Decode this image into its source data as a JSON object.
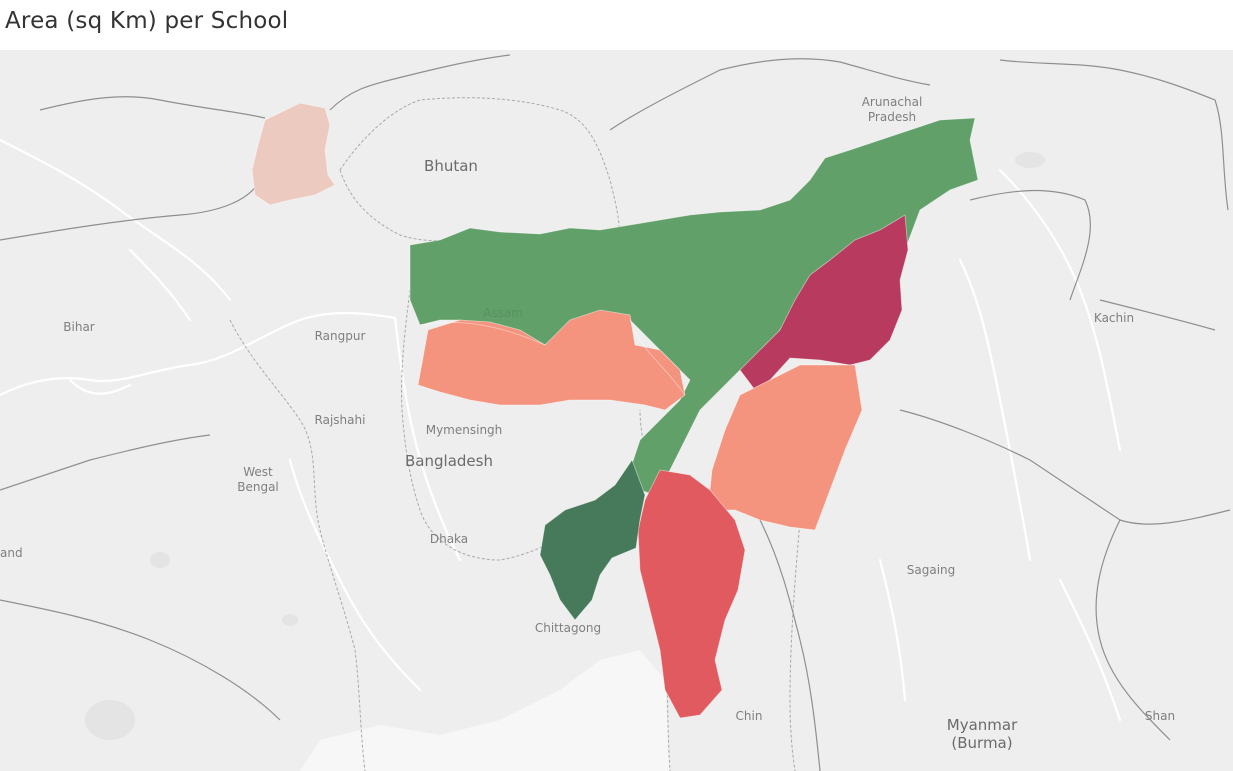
{
  "title": "Area (sq Km) per School",
  "colors": {
    "map_background": "#eeeeee",
    "border_line": "#b9b9b9",
    "dark_green": "#467a5a",
    "green": "#62a06a",
    "light_salmon": "#eccabf",
    "salmon": "#f4937e",
    "coral_red": "#e05a60",
    "crimson": "#b83a5e"
  },
  "map": {
    "place_labels": [
      {
        "text": "Arunachal",
        "name": "label-arunachal-1",
        "size": "sm"
      },
      {
        "text": "Pradesh",
        "name": "label-arunachal-2",
        "size": "sm"
      },
      {
        "text": "Bhutan",
        "name": "label-bhutan",
        "size": "lg"
      },
      {
        "text": "Assam",
        "name": "label-assam",
        "size": "sm"
      },
      {
        "text": "Bihar",
        "name": "label-bihar",
        "size": "sm"
      },
      {
        "text": "Rangpur",
        "name": "label-rangpur",
        "size": "sm"
      },
      {
        "text": "Rajshahi",
        "name": "label-rajshahi",
        "size": "sm"
      },
      {
        "text": "Mymensingh",
        "name": "label-mymensingh",
        "size": "sm"
      },
      {
        "text": "Bangladesh",
        "name": "label-bangladesh",
        "size": "lg"
      },
      {
        "text": "West",
        "name": "label-west-bengal-1",
        "size": "sm"
      },
      {
        "text": "Bengal",
        "name": "label-west-bengal-2",
        "size": "sm"
      },
      {
        "text": "Dhaka",
        "name": "label-dhaka",
        "size": "sm"
      },
      {
        "text": "and",
        "name": "label-and",
        "size": "sm"
      },
      {
        "text": "Chittagong",
        "name": "label-chittagong",
        "size": "sm"
      },
      {
        "text": "Kachin",
        "name": "label-kachin",
        "size": "sm"
      },
      {
        "text": "Sagaing",
        "name": "label-sagaing",
        "size": "sm"
      },
      {
        "text": "Chin",
        "name": "label-chin",
        "size": "sm"
      },
      {
        "text": "Myanmar",
        "name": "label-myanmar-1",
        "size": "lg"
      },
      {
        "text": "(Burma)",
        "name": "label-myanmar-2",
        "size": "lg"
      },
      {
        "text": "Shan",
        "name": "label-shan",
        "size": "sm"
      }
    ]
  }
}
